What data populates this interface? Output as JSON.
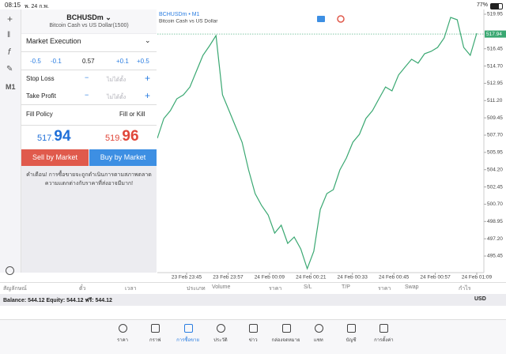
{
  "status_bar": {
    "time": "08:15",
    "date": "พ. 24 ก.พ.",
    "battery": "77%"
  },
  "sidebar": {
    "timeframe": "M1"
  },
  "order": {
    "symbol": "BCHUSDm",
    "description": "Bitcoin Cash vs US Dollar(1500)",
    "execution": "Market Execution",
    "volume_steps": [
      "-0.5",
      "-0.1",
      "+0.1",
      "+0.5"
    ],
    "volume": "0.57",
    "stop_loss": {
      "label": "Stop Loss",
      "value": "ไม่ได้ตั้ง"
    },
    "take_profit": {
      "label": "Take Profit",
      "value": "ไม่ได้ตั้ง"
    },
    "fill_policy": {
      "label": "Fill Policy",
      "value": "Fill or Kill"
    },
    "bid": {
      "main": "517.",
      "pips": "94"
    },
    "ask": {
      "main": "519.",
      "pips": "96"
    },
    "sell_button": "Sell by Market",
    "buy_button": "Buy by Market",
    "warning": [
      "คำเตือน! การซื้อขายจะถูกดำเนินการตามสภาพตลาด",
      "ความแตกต่างกับราคาที่ส่งอาจมีมาก!"
    ]
  },
  "chart_data": {
    "type": "line",
    "title": "BCHUSDm • M1",
    "subtitle": "Bitcoin Cash vs US Dollar",
    "color": "#3aa872",
    "values": [
      507.38,
      509.38,
      510.18,
      511.38,
      511.78,
      512.58,
      514.19,
      515.79,
      516.75,
      517.79,
      511.78,
      510.18,
      508.58,
      506.98,
      504.18,
      501.78,
      500.57,
      499.61,
      497.77,
      498.57,
      496.73,
      497.37,
      496.17,
      494.17,
      495.93,
      500.17,
      501.78,
      502.18,
      504.18,
      505.38,
      506.98,
      507.78,
      509.38,
      510.18,
      511.38,
      512.58,
      512.18,
      513.79,
      514.59,
      515.39,
      514.99,
      515.95,
      516.19,
      516.59,
      517.55,
      519.63,
      519.39,
      516.59,
      515.79,
      518.03
    ],
    "price_line": 517.94,
    "x_labels": [
      "23 Feb 23:45",
      "23 Feb 23:57",
      "24 Feb 00:09",
      "24 Feb 00:21",
      "24 Feb 00:33",
      "24 Feb 00:45",
      "24 Feb 00:57",
      "24 Feb 01:09"
    ],
    "ylim": [
      493.77,
      520.43
    ],
    "yticks": [
      {
        "value": 519.95,
        "label": "519.95"
      },
      {
        "value": 516.45,
        "label": "516.45"
      },
      {
        "value": 514.7,
        "label": "514.70"
      },
      {
        "value": 512.95,
        "label": "512.95"
      },
      {
        "value": 511.2,
        "label": "511.20"
      },
      {
        "value": 509.45,
        "label": "509.45"
      },
      {
        "value": 507.7,
        "label": "507.70"
      },
      {
        "value": 505.95,
        "label": "505.95"
      },
      {
        "value": 504.2,
        "label": "504.20"
      },
      {
        "value": 502.45,
        "label": "502.45"
      },
      {
        "value": 500.7,
        "label": "500.70"
      },
      {
        "value": 498.95,
        "label": "498.95"
      },
      {
        "value": 497.2,
        "label": "497.20"
      },
      {
        "value": 495.45,
        "label": "495.45"
      }
    ]
  },
  "positions_table": {
    "columns": [
      "สัญลักษณ์",
      "ตั๋ว",
      "เวลา",
      "ประเภท",
      "Volume",
      "ราคา",
      "S/L",
      "T/P",
      "ราคา",
      "Swap",
      "กำไร"
    ]
  },
  "balance": {
    "text": "Balance: 544.12 Equity: 544.12 ฟรี: 544.12",
    "currency": "USD"
  },
  "tab_bar": {
    "tabs": [
      "ราคา",
      "กราฟ",
      "การซื้อขาย",
      "ประวัติ",
      "ข่าว",
      "กล่องจดหมาย",
      "แชท",
      "บัญชี",
      "การตั้งค่า"
    ],
    "active": 2
  }
}
